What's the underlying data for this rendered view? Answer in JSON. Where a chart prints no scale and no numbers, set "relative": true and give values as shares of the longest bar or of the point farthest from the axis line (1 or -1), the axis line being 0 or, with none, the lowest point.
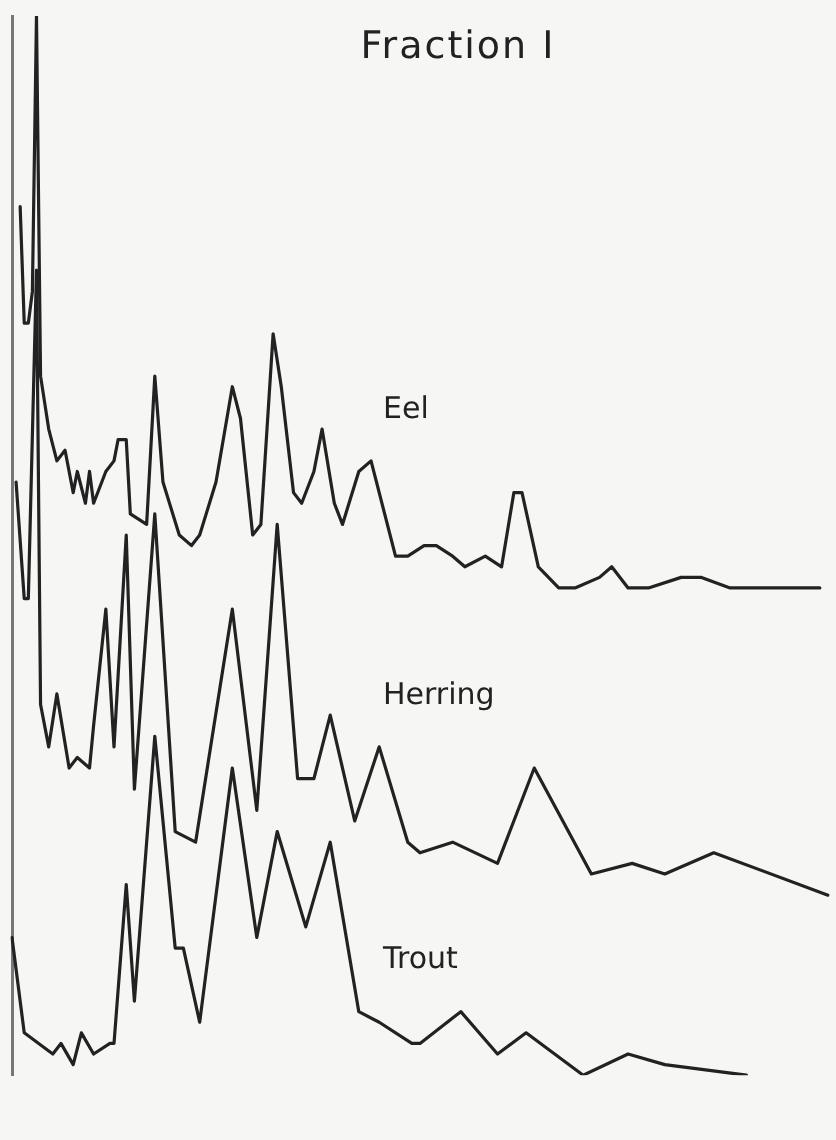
{
  "chart_data": {
    "type": "line",
    "title": "Fraction I",
    "relative": true,
    "grid": false,
    "legend": false,
    "marker": "none",
    "line_style": "solid",
    "categories": [
      null,
      null,
      null,
      null,
      null,
      null,
      null,
      null,
      null,
      null,
      null,
      null,
      null,
      null,
      null,
      null,
      null,
      null,
      null,
      null,
      null,
      null,
      null,
      null,
      null,
      null,
      null,
      null,
      null,
      null,
      null,
      null,
      null,
      null,
      null,
      null,
      null,
      null,
      null,
      null,
      null,
      null,
      null,
      null,
      null,
      null,
      null,
      null,
      null,
      null,
      null,
      null,
      null,
      null,
      null,
      null,
      null,
      null,
      null,
      null,
      null,
      null,
      null,
      null,
      null,
      null,
      null,
      null,
      null,
      null,
      null,
      null,
      null,
      null,
      null,
      null,
      null,
      null,
      null,
      null,
      null,
      null,
      null,
      null,
      null,
      null,
      null,
      null,
      null,
      null,
      null,
      null,
      null,
      null,
      null,
      null,
      null,
      null,
      null,
      null,
      null,
      null,
      null,
      null,
      null,
      null,
      null,
      null,
      null,
      null,
      null,
      null,
      null,
      null,
      null,
      null,
      null,
      null,
      null,
      null,
      null,
      null,
      null,
      null,
      null,
      null,
      null,
      null,
      null,
      null,
      null,
      null,
      null,
      null,
      null,
      null,
      null,
      null,
      null,
      null,
      null,
      null,
      null,
      null,
      null,
      null,
      null,
      null,
      null,
      null,
      null,
      null,
      null,
      null,
      null,
      null,
      null,
      null,
      null,
      null,
      null,
      null,
      null,
      null,
      null,
      null,
      null,
      null,
      null,
      null,
      null,
      null,
      null,
      null,
      null,
      null,
      null,
      null,
      null,
      null,
      null,
      null,
      null,
      null,
      null,
      null,
      null,
      null,
      null,
      null,
      null,
      null,
      null,
      null,
      null,
      null,
      null,
      null,
      null,
      null,
      null
    ],
    "series": [
      {
        "name": "Eel",
        "color": "#222222",
        "values": [
          null,
          null,
          0.82,
          0.71,
          0.71,
          0.74,
          1.0,
          0.66,
          null,
          0.61,
          null,
          0.58,
          null,
          0.59,
          null,
          0.55,
          0.57,
          null,
          0.54,
          0.57,
          0.54,
          null,
          null,
          0.57,
          null,
          0.58,
          0.6,
          null,
          0.6,
          0.53,
          null,
          null,
          null,
          0.52,
          null,
          0.66,
          null,
          0.56,
          null,
          null,
          null,
          0.51,
          null,
          null,
          0.5,
          null,
          0.51,
          null,
          null,
          null,
          0.56,
          null,
          null,
          null,
          0.65,
          null,
          0.62,
          null,
          null,
          0.51,
          null,
          0.52,
          null,
          null,
          0.7,
          null,
          0.65,
          null,
          null,
          0.55,
          null,
          0.54,
          null,
          null,
          0.57,
          null,
          0.61,
          null,
          null,
          0.54,
          null,
          0.52,
          null,
          null,
          null,
          0.57,
          null,
          null,
          0.58,
          null,
          0.55,
          null,
          null,
          null,
          0.49,
          null,
          null,
          0.49,
          null,
          null,
          null,
          0.5,
          null,
          null,
          0.5,
          null,
          null,
          null,
          0.49,
          null,
          null,
          0.48,
          null,
          null,
          null,
          null,
          0.49,
          null,
          null,
          null,
          0.48,
          null,
          null,
          0.55,
          null,
          0.55,
          null,
          null,
          null,
          0.48,
          null,
          null,
          null,
          null,
          0.46,
          null,
          null,
          null,
          0.46,
          null,
          null,
          null,
          null,
          null,
          0.47,
          null,
          null,
          0.48,
          null,
          null,
          null,
          0.46,
          null,
          null,
          null,
          null,
          0.46,
          null,
          null,
          null,
          null,
          null,
          null,
          null,
          0.47,
          null,
          null,
          null,
          null,
          0.47,
          null,
          null,
          null,
          null,
          null,
          null,
          0.46,
          null,
          null,
          null,
          null,
          0.46,
          null,
          null,
          null,
          null,
          null,
          null,
          null,
          null,
          null,
          null,
          null,
          null,
          null,
          null,
          null,
          null,
          0.46,
          null,
          null
        ]
      },
      {
        "name": "Herring",
        "color": "#222222",
        "values": [
          null,
          0.56,
          null,
          0.45,
          0.45,
          null,
          0.76,
          0.35,
          null,
          0.31,
          null,
          0.36,
          null,
          null,
          0.29,
          null,
          0.3,
          null,
          null,
          0.29,
          0.33,
          null,
          null,
          0.44,
          null,
          0.31,
          null,
          null,
          0.51,
          null,
          0.27,
          null,
          null,
          null,
          null,
          0.53,
          null,
          null,
          null,
          null,
          0.23,
          null,
          null,
          null,
          null,
          0.22,
          null,
          null,
          null,
          null,
          null,
          null,
          null,
          null,
          0.44,
          null,
          null,
          null,
          null,
          null,
          0.25,
          null,
          null,
          null,
          null,
          0.52,
          null,
          null,
          null,
          null,
          0.28,
          null,
          null,
          null,
          0.28,
          null,
          null,
          null,
          0.34,
          null,
          null,
          null,
          null,
          null,
          0.24,
          null,
          null,
          null,
          null,
          null,
          0.31,
          null,
          null,
          null,
          null,
          null,
          null,
          0.22,
          null,
          null,
          0.21,
          null,
          null,
          null,
          null,
          null,
          null,
          null,
          0.22,
          null,
          null,
          null,
          null,
          null,
          null,
          null,
          null,
          null,
          null,
          0.2,
          null,
          null,
          null,
          null,
          null,
          null,
          null,
          null,
          0.29,
          null,
          null,
          null,
          null,
          null,
          null,
          null,
          null,
          null,
          null,
          null,
          null,
          null,
          0.19,
          null,
          null,
          null,
          null,
          null,
          null,
          null,
          null,
          null,
          0.2,
          null,
          null,
          null,
          null,
          null,
          null,
          null,
          0.19,
          null,
          null,
          null,
          null,
          null,
          null,
          null,
          null,
          null,
          null,
          null,
          0.21,
          null,
          null,
          null,
          null,
          null,
          null,
          null,
          null,
          null,
          null,
          null,
          null,
          null,
          null,
          null,
          null,
          null,
          null,
          null,
          null,
          null,
          null,
          null,
          null,
          null,
          null,
          null,
          0.17
        ]
      },
      {
        "name": "Trout",
        "color": "#222222",
        "values": [
          0.13,
          null,
          null,
          0.04,
          null,
          null,
          null,
          null,
          null,
          null,
          0.02,
          null,
          0.03,
          null,
          null,
          0.01,
          null,
          0.04,
          null,
          null,
          0.02,
          null,
          null,
          null,
          0.03,
          0.03,
          null,
          null,
          0.18,
          null,
          0.07,
          null,
          null,
          null,
          null,
          0.32,
          null,
          null,
          null,
          null,
          0.12,
          null,
          0.12,
          null,
          null,
          null,
          0.05,
          null,
          null,
          null,
          null,
          null,
          null,
          null,
          0.29,
          null,
          null,
          null,
          null,
          null,
          0.13,
          null,
          null,
          null,
          null,
          0.23,
          null,
          null,
          null,
          null,
          null,
          null,
          0.14,
          null,
          null,
          null,
          null,
          null,
          0.22,
          null,
          null,
          null,
          null,
          null,
          null,
          0.06,
          null,
          null,
          null,
          null,
          0.05,
          null,
          null,
          null,
          null,
          null,
          null,
          null,
          0.03,
          null,
          0.03,
          null,
          null,
          null,
          null,
          null,
          null,
          null,
          null,
          null,
          0.06,
          null,
          null,
          null,
          null,
          null,
          null,
          null,
          null,
          0.02,
          null,
          null,
          null,
          null,
          null,
          null,
          0.04,
          null,
          null,
          null,
          null,
          null,
          null,
          null,
          null,
          null,
          null,
          null,
          null,
          null,
          0,
          null,
          null,
          null,
          null,
          null,
          null,
          null,
          null,
          null,
          null,
          0.02,
          null,
          null,
          null,
          null,
          null,
          null,
          null,
          null,
          0.01,
          null,
          null,
          null,
          null,
          null,
          null,
          null,
          null,
          null,
          null,
          null,
          null,
          null,
          null,
          null,
          null,
          null,
          null,
          null,
          0,
          null,
          null,
          null,
          null,
          null,
          null,
          null,
          null,
          null,
          null,
          null,
          null,
          null,
          null,
          null,
          null,
          null,
          null,
          null,
          null
        ]
      }
    ]
  }
}
